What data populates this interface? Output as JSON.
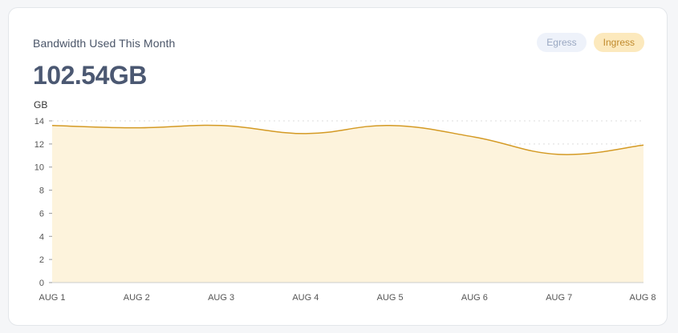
{
  "card": {
    "title": "Bandwidth Used This Month",
    "total": "102.54GB"
  },
  "legend": {
    "egress_label": "Egress",
    "ingress_label": "Ingress"
  },
  "colors": {
    "ingress_line": "#d49a24",
    "ingress_fill": "#fdf3dc",
    "egress_pill_bg": "#eef2fa",
    "egress_pill_text": "#9aa8c2",
    "ingress_pill_bg": "#fce9bd",
    "ingress_pill_text": "#c08a2c",
    "axis": "#555555",
    "grid": "#dddddd"
  },
  "chart_data": {
    "type": "area",
    "title": "",
    "ylabel": "GB",
    "xlabel": "",
    "categories": [
      "AUG 1",
      "AUG 2",
      "AUG 3",
      "AUG 4",
      "AUG 5",
      "AUG 6",
      "AUG 7",
      "AUG 8"
    ],
    "yticks": [
      0,
      2,
      4,
      6,
      8,
      10,
      12,
      14
    ],
    "ylim": [
      0,
      14
    ],
    "grid": "horizontal dashed",
    "legend": "top-right",
    "series": [
      {
        "name": "Ingress",
        "values": [
          13.6,
          13.4,
          13.6,
          12.9,
          13.6,
          12.6,
          11.1,
          11.9
        ]
      }
    ]
  }
}
